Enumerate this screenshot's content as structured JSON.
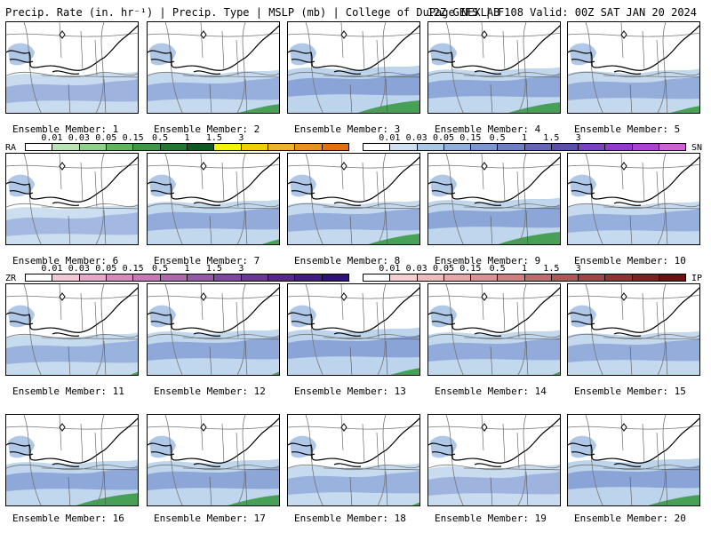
{
  "header": {
    "left": "Precip. Rate (in. hr⁻¹) | Precip. Type | MSLP (mb) | College of DuPage NEXLAB",
    "right": "12Z GEFS | F108 Valid: 00Z SAT JAN 20 2024"
  },
  "legends": {
    "ra": {
      "tag": "RA",
      "ticks": [
        "0.01",
        "0.03",
        "0.05",
        "0.15",
        "0.5",
        "1",
        "1.5",
        "3"
      ],
      "colors": [
        "#ffffff",
        "#b8e3b5",
        "#8fd08a",
        "#5db85b",
        "#3a9a45",
        "#1f7a30",
        "#0f5a20",
        "#f4f400",
        "#f0d000",
        "#f0b030",
        "#e89020",
        "#e07010"
      ]
    },
    "sn": {
      "tag": "SN",
      "ticks": [
        "0.01",
        "0.03",
        "0.05",
        "0.15",
        "0.5",
        "1",
        "1.5",
        "3"
      ],
      "colors": [
        "#ffffff",
        "#cfe0f0",
        "#a9c8e6",
        "#8fb0dd",
        "#7c96d2",
        "#6d7fc6",
        "#6366ba",
        "#5a4fb0",
        "#7a42c0",
        "#9638c8",
        "#b040d0",
        "#d060d8"
      ]
    },
    "zr": {
      "tag": "ZR",
      "ticks": [
        "0.01",
        "0.03",
        "0.05",
        "0.15",
        "0.5",
        "1",
        "1.5",
        "3"
      ],
      "colors": [
        "#ffffff",
        "#f2c8d8",
        "#e4a8c8",
        "#d48cbc",
        "#c47ab4",
        "#ae68ac",
        "#9658a4",
        "#80489c",
        "#6a3894",
        "#56288c",
        "#421c84",
        "#30107c"
      ]
    },
    "ip": {
      "tag": "IP",
      "ticks": [
        "0.01",
        "0.03",
        "0.05",
        "0.15",
        "0.5",
        "1",
        "1.5",
        "3"
      ],
      "colors": [
        "#ffffff",
        "#f6d0d0",
        "#eebcbc",
        "#e4a8a8",
        "#d89494",
        "#cc8080",
        "#be6c6c",
        "#b05858",
        "#a04444",
        "#903232",
        "#802020",
        "#701010"
      ]
    }
  },
  "members": [
    {
      "label": "Ensemble Member: 1",
      "snow": 0.45,
      "rain": 0.0
    },
    {
      "label": "Ensemble Member: 2",
      "snow": 0.55,
      "rain": 0.25
    },
    {
      "label": "Ensemble Member: 3",
      "snow": 0.8,
      "rain": 0.35
    },
    {
      "label": "Ensemble Member: 4",
      "snow": 0.7,
      "rain": 0.3
    },
    {
      "label": "Ensemble Member: 5",
      "snow": 0.6,
      "rain": 0.2
    },
    {
      "label": "Ensemble Member: 6",
      "snow": 0.35,
      "rain": 0.0
    },
    {
      "label": "Ensemble Member: 7",
      "snow": 0.65,
      "rain": 0.15
    },
    {
      "label": "Ensemble Member: 8",
      "snow": 0.6,
      "rain": 0.3
    },
    {
      "label": "Ensemble Member: 9",
      "snow": 0.75,
      "rain": 0.35
    },
    {
      "label": "Ensemble Member: 10",
      "snow": 0.55,
      "rain": 0.0
    },
    {
      "label": "Ensemble Member: 11",
      "snow": 0.5,
      "rain": 0.1
    },
    {
      "label": "Ensemble Member: 12",
      "snow": 0.7,
      "rain": 0.1
    },
    {
      "label": "Ensemble Member: 13",
      "snow": 0.8,
      "rain": 0.2
    },
    {
      "label": "Ensemble Member: 14",
      "snow": 0.65,
      "rain": 0.1
    },
    {
      "label": "Ensemble Member: 15",
      "snow": 0.6,
      "rain": 0.0
    },
    {
      "label": "Ensemble Member: 16",
      "snow": 0.7,
      "rain": 0.35
    },
    {
      "label": "Ensemble Member: 17",
      "snow": 0.75,
      "rain": 0.3
    },
    {
      "label": "Ensemble Member: 18",
      "snow": 0.5,
      "rain": 0.1
    },
    {
      "label": "Ensemble Member: 19",
      "snow": 0.45,
      "rain": 0.0
    },
    {
      "label": "Ensemble Member: 20",
      "snow": 0.8,
      "rain": 0.3
    }
  ]
}
